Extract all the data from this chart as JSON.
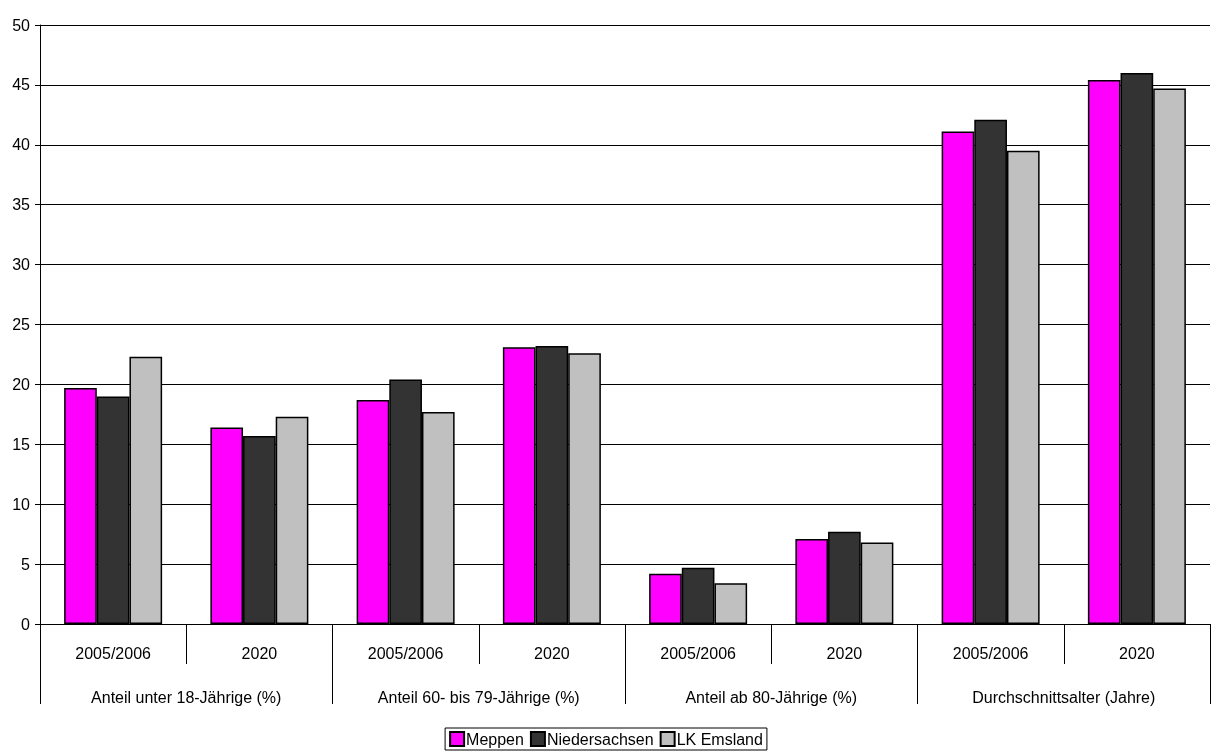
{
  "chart_data": {
    "type": "bar",
    "categories": [
      "2005/2006",
      "2020",
      "2005/2006",
      "2020",
      "2005/2006",
      "2020",
      "2005/2006",
      "2020"
    ],
    "annotations": [
      "Anteil unter 18-Jährige (%)",
      "Anteil 60- bis 79-Jährige (%)",
      "Anteil ab 80-Jährige (%)",
      "Durchschnittsalter (Jahre)"
    ],
    "series": [
      {
        "name": "Meppen",
        "color": "#ff00ff",
        "values": [
          19.7,
          16.4,
          18.7,
          23.1,
          4.2,
          7.1,
          41.1,
          45.4
        ]
      },
      {
        "name": "Niedersachsen",
        "color": "#333333",
        "values": [
          19.0,
          15.7,
          20.4,
          23.2,
          4.7,
          7.7,
          42.1,
          46.0
        ]
      },
      {
        "name": "LK Emsland",
        "color": "#c0c0c0",
        "values": [
          22.3,
          17.3,
          17.7,
          22.6,
          3.4,
          6.8,
          39.5,
          44.7
        ]
      }
    ],
    "ylim": [
      0,
      50
    ],
    "yticks": [
      0,
      5,
      10,
      15,
      20,
      25,
      30,
      35,
      40,
      45,
      50
    ],
    "grid": true,
    "legend": "bottom"
  }
}
